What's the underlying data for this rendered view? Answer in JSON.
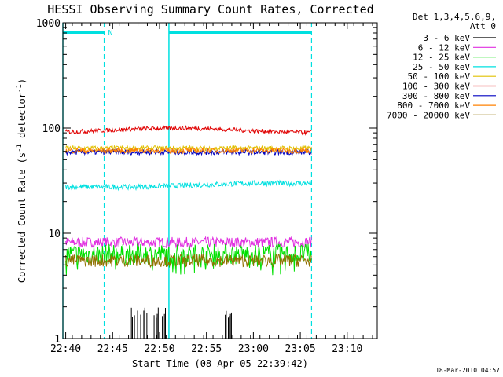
{
  "chart_data": {
    "type": "line",
    "title": "HESSI Observing Summary Count Rates, Corrected",
    "xlabel": "Start Time (08-Apr-05 22:39:42)",
    "ylabel": "Corrected Count Rate (s",
    "ylabel_sup1": "-1",
    "ylabel_mid": " detector",
    "ylabel_sup2": "-1",
    "ylabel_end": ")",
    "y_scale": "log",
    "ylim": [
      1,
      1000
    ],
    "xlim_min": [
      0,
      33.5
    ],
    "x_tick_labels": [
      "22:40",
      "22:45",
      "22:50",
      "22:55",
      "23:00",
      "23:05",
      "23:10"
    ],
    "x_tick_minutes": [
      0.3,
      5.3,
      10.3,
      15.3,
      20.3,
      25.3,
      30.3
    ],
    "y_tick_labels": [
      "1",
      "10",
      "100",
      "1000"
    ],
    "y_tick_values": [
      1,
      10,
      100,
      1000
    ],
    "legend_header": [
      "Det 1,3,4,5,6,9,",
      "Att 0"
    ],
    "legend_placement": "right",
    "series": [
      {
        "name": "3 - 6 keV",
        "color": "#000000",
        "level": 1.5
      },
      {
        "name": "6 - 12 keV",
        "color": "#e030e0",
        "level": 8.2
      },
      {
        "name": "12 - 25 keV",
        "color": "#00e000",
        "level": 6.3
      },
      {
        "name": "25 - 50 keV",
        "color": "#00e0e0",
        "level": 29
      },
      {
        "name": "50 - 100 keV",
        "color": "#e0c000",
        "level": 64
      },
      {
        "name": "100 - 300 keV",
        "color": "#e00000",
        "level": 100
      },
      {
        "name": "300 - 800 keV",
        "color": "#0000c0",
        "level": 59
      },
      {
        "name": "800 - 7000 keV",
        "color": "#ff8000",
        "level": 61
      },
      {
        "name": "7000 - 20000 keV",
        "color": "#907000",
        "level": 5.5
      }
    ],
    "annotations": {
      "flag_label": "N",
      "flag_color": "#00e0e0",
      "solid_vlines_min": [
        0.0,
        11.3
      ],
      "dashed_vlines_min": [
        4.4,
        26.5
      ],
      "flag_bars_min": [
        [
          0.0,
          4.4
        ],
        [
          11.3,
          26.5
        ]
      ]
    }
  },
  "timestamp": "18-Mar-2010 04:57"
}
